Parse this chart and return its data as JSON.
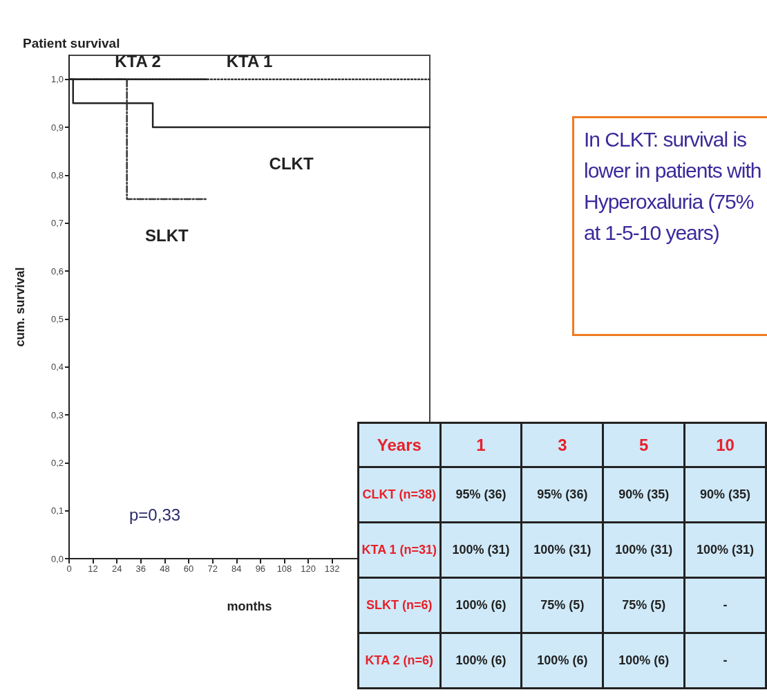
{
  "chart_data": [
    {
      "type": "step",
      "title": "Patient survival",
      "xlabel": "months",
      "ylabel": "cum. survival",
      "xlim": [
        0,
        181
      ],
      "xticks": [
        0,
        12,
        24,
        36,
        48,
        60,
        72,
        84,
        96,
        108,
        120,
        132
      ],
      "ylim": [
        0,
        1.05
      ],
      "yticks": [
        {
          "value": 0,
          "label": "0,0"
        },
        {
          "value": 0.1,
          "label": "0,1"
        },
        {
          "value": 0.2,
          "label": "0,2"
        },
        {
          "value": 0.3,
          "label": "0,3"
        },
        {
          "value": 0.4,
          "label": "0,4"
        },
        {
          "value": 0.5,
          "label": "0,5"
        },
        {
          "value": 0.6,
          "label": "0,6"
        },
        {
          "value": 0.7,
          "label": "0,7"
        },
        {
          "value": 0.8,
          "label": "0,8"
        },
        {
          "value": 0.9,
          "label": "0,9"
        },
        {
          "value": 1,
          "label": "1,0"
        }
      ],
      "marker": "none",
      "series": [
        {
          "name": "KTA 1",
          "color": "#333333",
          "line_style": "dotted",
          "x": [
            0,
            181
          ],
          "values": [
            1,
            1
          ]
        },
        {
          "name": "CLKT",
          "color": "#222222",
          "line_style": "solid",
          "x": [
            0,
            2,
            42,
            181
          ],
          "values": [
            1,
            0.95,
            0.9,
            0.9
          ]
        },
        {
          "name": "SLKT",
          "color": "#333333",
          "line_style": "dashed",
          "x": [
            0,
            29,
            69
          ],
          "values": [
            1,
            0.75,
            0.75
          ]
        },
        {
          "name": "KTA 2",
          "color": "#222222",
          "line_style": "solid",
          "x": [
            0,
            69
          ],
          "values": [
            1,
            1
          ]
        }
      ],
      "annotations": [
        "p=0,33",
        "In CLKT: survival is lower in patients with Hyperoxaluria (75% at 1-5-10 years)"
      ]
    },
    {
      "type": "other",
      "xlabel": "Years",
      "categories": [
        "1",
        "3",
        "5",
        "10"
      ],
      "y_categories": [
        "CLKT (n=38)",
        "KTA 1 (n=31)",
        "SLKT (n=6)",
        "KTA 2 (n=6)"
      ],
      "cell_labels": [
        [
          "95% (36)",
          "95% (36)",
          "90% (35)",
          "90% (35)"
        ],
        [
          "100% (31)",
          "100% (31)",
          "100% (31)",
          "100% (31)"
        ],
        [
          "100% (6)",
          "75% (5)",
          "75% (5)",
          "-"
        ],
        [
          "100% (6)",
          "100% (6)",
          "100% (6)",
          "-"
        ]
      ]
    }
  ]
}
